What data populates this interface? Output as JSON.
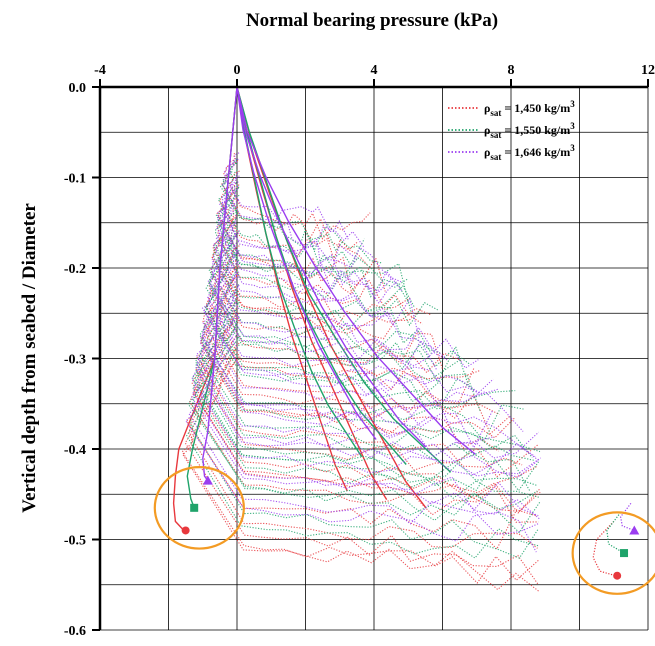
{
  "chart_data": {
    "type": "line",
    "title": "",
    "xlabel": "Normal bearing pressure (kPa)",
    "ylabel": "Vertical depth from seabed / Diameter",
    "xlim": [
      -4,
      12
    ],
    "ylim": [
      -0.6,
      0.0
    ],
    "x_axis_position": "top",
    "x_ticks": [
      -4,
      0,
      4,
      8,
      12
    ],
    "x_tick_labels": [
      "-4",
      "0",
      "4",
      "8",
      "12"
    ],
    "y_ticks": [
      0.0,
      -0.1,
      -0.2,
      -0.3,
      -0.4,
      -0.5,
      -0.6
    ],
    "y_tick_labels": [
      "0.0",
      "-0.1",
      "-0.2",
      "-0.3",
      "-0.4",
      "-0.5",
      "-0.6"
    ],
    "grid": true,
    "legend_position": "top-right",
    "series": [
      {
        "name": "ρsat = 1,450 kg/m3",
        "name_parts": {
          "rho": "ρ",
          "sub": "sat",
          "value": " = 1,450 kg/m",
          "sup": "3"
        },
        "color": "#e8383d",
        "marker": "circle",
        "solid_profile": [
          [
            0,
            0
          ],
          [
            0.35,
            -0.06
          ],
          [
            0.8,
            -0.12
          ],
          [
            1.2,
            -0.17
          ],
          [
            1.7,
            -0.23
          ],
          [
            2.3,
            -0.29
          ],
          [
            2.9,
            -0.34
          ],
          [
            3.5,
            -0.39
          ],
          [
            4.1,
            -0.44
          ],
          [
            4.6,
            -0.47
          ]
        ],
        "unload_left": [
          [
            -1.7,
            -0.4
          ],
          [
            -1.8,
            -0.43
          ],
          [
            -1.85,
            -0.46
          ],
          [
            -1.8,
            -0.48
          ],
          [
            -1.55,
            -0.49
          ]
        ],
        "unload_right": [
          [
            11,
            -0.48
          ],
          [
            10.5,
            -0.5
          ],
          [
            10.4,
            -0.52
          ],
          [
            10.6,
            -0.535
          ],
          [
            11.05,
            -0.54
          ]
        ],
        "end_markers": [
          [
            -1.5,
            -0.49
          ],
          [
            11.1,
            -0.54
          ]
        ]
      },
      {
        "name": "ρsat = 1,550 kg/m3",
        "name_parts": {
          "rho": "ρ",
          "sub": "sat",
          "value": " = 1,550 kg/m",
          "sup": "3"
        },
        "color": "#1fa36a",
        "marker": "square",
        "solid_profile": [
          [
            0,
            0
          ],
          [
            0.3,
            -0.05
          ],
          [
            0.75,
            -0.11
          ],
          [
            1.2,
            -0.17
          ],
          [
            1.75,
            -0.23
          ],
          [
            2.4,
            -0.28
          ],
          [
            3.1,
            -0.33
          ],
          [
            3.8,
            -0.37
          ],
          [
            4.5,
            -0.4
          ],
          [
            5.2,
            -0.43
          ]
        ],
        "unload_left": [
          [
            -1.3,
            -0.4
          ],
          [
            -1.45,
            -0.43
          ],
          [
            -1.35,
            -0.455
          ],
          [
            -1.25,
            -0.465
          ]
        ],
        "unload_right": [
          [
            11.2,
            -0.47
          ],
          [
            10.8,
            -0.49
          ],
          [
            10.85,
            -0.505
          ],
          [
            11.3,
            -0.515
          ]
        ],
        "end_markers": [
          [
            -1.25,
            -0.465
          ],
          [
            11.3,
            -0.515
          ]
        ]
      },
      {
        "name": "ρsat = 1,646 kg/m3",
        "name_parts": {
          "rho": "ρ",
          "sub": "sat",
          "value": " = 1,646 kg/m",
          "sup": "3"
        },
        "color": "#9b3df0",
        "marker": "triangle",
        "solid_profile": [
          [
            0,
            0
          ],
          [
            0.25,
            -0.05
          ],
          [
            0.7,
            -0.1
          ],
          [
            1.25,
            -0.15
          ],
          [
            1.9,
            -0.2
          ],
          [
            2.6,
            -0.25
          ],
          [
            3.4,
            -0.3
          ],
          [
            4.2,
            -0.34
          ],
          [
            5.0,
            -0.38
          ],
          [
            5.8,
            -0.41
          ]
        ],
        "unload_left": [
          [
            -0.85,
            -0.38
          ],
          [
            -1.0,
            -0.41
          ],
          [
            -0.95,
            -0.43
          ],
          [
            -0.85,
            -0.435
          ]
        ],
        "unload_right": [
          [
            11.5,
            -0.46
          ],
          [
            11.2,
            -0.475
          ],
          [
            11.25,
            -0.485
          ],
          [
            11.6,
            -0.49
          ]
        ],
        "end_markers": [
          [
            -0.85,
            -0.435
          ],
          [
            11.6,
            -0.49
          ]
        ]
      }
    ],
    "annotations": [
      {
        "type": "circle",
        "color": "#f39b24",
        "center": [
          -1.1,
          -0.465
        ],
        "radius_x": 1.3,
        "radius_y": 0.045
      },
      {
        "type": "circle",
        "color": "#f39b24",
        "center": [
          11.1,
          -0.515
        ],
        "radius_x": 1.3,
        "radius_y": 0.045
      }
    ]
  }
}
